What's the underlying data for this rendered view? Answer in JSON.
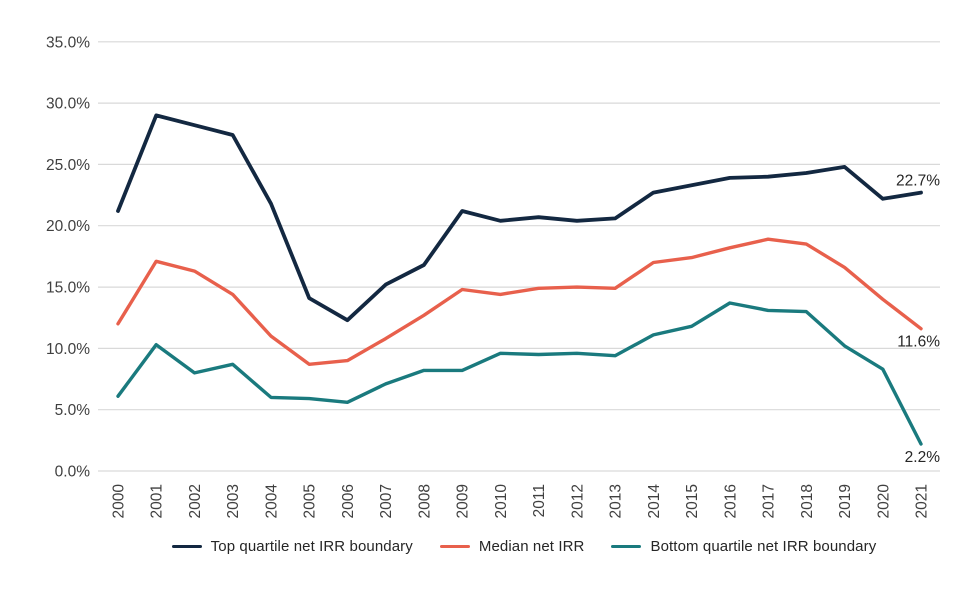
{
  "chart_data": {
    "type": "line",
    "x": [
      "2000",
      "2001",
      "2002",
      "2003",
      "2004",
      "2005",
      "2006",
      "2007",
      "2008",
      "2009",
      "2010",
      "2011",
      "2012",
      "2013",
      "2014",
      "2015",
      "2016",
      "2017",
      "2018",
      "2019",
      "2020",
      "2021"
    ],
    "y_ticks": [
      "0.0%",
      "5.0%",
      "10.0%",
      "15.0%",
      "20.0%",
      "25.0%",
      "30.0%",
      "35.0%"
    ],
    "ylim": [
      0,
      35
    ],
    "grid": true,
    "legend_position": "bottom",
    "title": "",
    "xlabel": "",
    "ylabel": "",
    "series": [
      {
        "id": "top-quartile",
        "name": "Top quartile net IRR boundary",
        "color": "#132841",
        "end_label": "22.7%",
        "values": [
          21.2,
          29.0,
          28.2,
          27.4,
          21.8,
          14.1,
          12.3,
          15.2,
          16.8,
          21.2,
          20.4,
          20.7,
          20.4,
          20.6,
          22.7,
          23.3,
          23.9,
          24.0,
          24.3,
          24.8,
          22.2,
          22.7
        ]
      },
      {
        "id": "median",
        "name": "Median net IRR",
        "color": "#E8604C",
        "end_label": "11.6%",
        "values": [
          12.0,
          17.1,
          16.3,
          14.4,
          11.0,
          8.7,
          9.0,
          10.8,
          12.7,
          14.8,
          14.4,
          14.9,
          15.0,
          14.9,
          17.0,
          17.4,
          18.2,
          18.9,
          18.5,
          16.6,
          14.0,
          11.6
        ]
      },
      {
        "id": "bottom-quartile",
        "name": "Bottom quartile net IRR boundary",
        "color": "#1A7A7E",
        "end_label": "2.2%",
        "values": [
          6.1,
          10.3,
          8.0,
          8.7,
          6.0,
          5.9,
          5.6,
          7.1,
          8.2,
          8.2,
          9.6,
          9.5,
          9.6,
          9.4,
          11.1,
          11.8,
          13.7,
          13.1,
          13.0,
          10.2,
          8.3,
          2.2
        ]
      }
    ],
    "colors": {
      "gridline": "#D9D9D9",
      "axis_text": "#404040",
      "annotation_text": "#262626",
      "background": "#FFFFFF"
    }
  }
}
